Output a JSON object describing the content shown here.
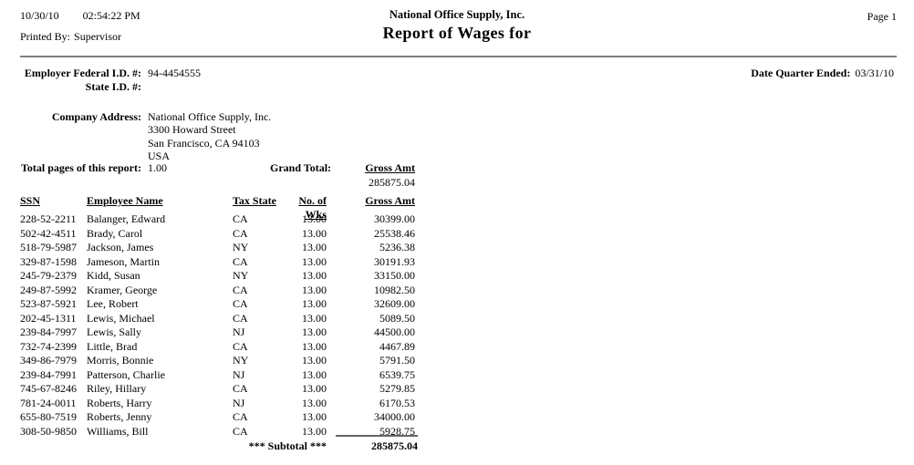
{
  "header": {
    "date": "10/30/10",
    "time": "02:54:22 PM",
    "printed_by_label": "Printed By:",
    "printed_by_value": "Supervisor",
    "company_name": "National Office Supply, Inc.",
    "report_title": "Report of Wages for",
    "page_number": "Page 1"
  },
  "employer": {
    "federal_id_label": "Employer Federal I.D. #:",
    "federal_id_value": "94-4454555",
    "state_id_label": "State I.D. #:",
    "quarter_ended_label": "Date Quarter Ended:",
    "quarter_ended_value": "03/31/10"
  },
  "company_address": {
    "label": "Company Address:",
    "line1": "National Office Supply, Inc.",
    "lines": [
      "3300 Howard Street",
      "San Francisco, CA 94103",
      "USA"
    ]
  },
  "summary": {
    "total_pages_label": "Total pages of this report:",
    "total_pages_value": "1.00",
    "grand_total_label": "Grand Total:",
    "gross_amt_label": "Gross Amt",
    "grand_total_value": "285875.04"
  },
  "table": {
    "headers": {
      "ssn": "SSN",
      "employee_name": "Employee Name",
      "tax_state": "Tax State",
      "no_of_wks": "No. of Wks",
      "gross_amt": "Gross Amt"
    },
    "rows": [
      {
        "ssn": "228-52-2211",
        "employee_name": "Balanger, Edward",
        "tax_state": "CA",
        "no_of_wks": "13.00",
        "gross_amt": "30399.00"
      },
      {
        "ssn": "502-42-4511",
        "employee_name": "Brady, Carol",
        "tax_state": "CA",
        "no_of_wks": "13.00",
        "gross_amt": "25538.46"
      },
      {
        "ssn": "518-79-5987",
        "employee_name": "Jackson, James",
        "tax_state": "NY",
        "no_of_wks": "13.00",
        "gross_amt": "5236.38"
      },
      {
        "ssn": "329-87-1598",
        "employee_name": "Jameson, Martin",
        "tax_state": "CA",
        "no_of_wks": "13.00",
        "gross_amt": "30191.93"
      },
      {
        "ssn": "245-79-2379",
        "employee_name": "Kidd, Susan",
        "tax_state": "NY",
        "no_of_wks": "13.00",
        "gross_amt": "33150.00"
      },
      {
        "ssn": "249-87-5992",
        "employee_name": "Kramer, George",
        "tax_state": "CA",
        "no_of_wks": "13.00",
        "gross_amt": "10982.50"
      },
      {
        "ssn": "523-87-5921",
        "employee_name": "Lee, Robert",
        "tax_state": "CA",
        "no_of_wks": "13.00",
        "gross_amt": "32609.00"
      },
      {
        "ssn": "202-45-1311",
        "employee_name": "Lewis, Michael",
        "tax_state": "CA",
        "no_of_wks": "13.00",
        "gross_amt": "5089.50"
      },
      {
        "ssn": "239-84-7997",
        "employee_name": "Lewis, Sally",
        "tax_state": "NJ",
        "no_of_wks": "13.00",
        "gross_amt": "44500.00"
      },
      {
        "ssn": "732-74-2399",
        "employee_name": "Little, Brad",
        "tax_state": "CA",
        "no_of_wks": "13.00",
        "gross_amt": "4467.89"
      },
      {
        "ssn": "349-86-7979",
        "employee_name": "Morris, Bonnie",
        "tax_state": "NY",
        "no_of_wks": "13.00",
        "gross_amt": "5791.50"
      },
      {
        "ssn": "239-84-7991",
        "employee_name": "Patterson, Charlie",
        "tax_state": "NJ",
        "no_of_wks": "13.00",
        "gross_amt": "6539.75"
      },
      {
        "ssn": "745-67-8246",
        "employee_name": "Riley, Hillary",
        "tax_state": "CA",
        "no_of_wks": "13.00",
        "gross_amt": "5279.85"
      },
      {
        "ssn": "781-24-0011",
        "employee_name": "Roberts, Harry",
        "tax_state": "NJ",
        "no_of_wks": "13.00",
        "gross_amt": "6170.53"
      },
      {
        "ssn": "655-80-7519",
        "employee_name": "Roberts, Jenny",
        "tax_state": "CA",
        "no_of_wks": "13.00",
        "gross_amt": "34000.00"
      },
      {
        "ssn": "308-50-9850",
        "employee_name": "Williams, Bill",
        "tax_state": "CA",
        "no_of_wks": "13.00",
        "gross_amt": "5928.75"
      }
    ],
    "subtotal_label": "*** Subtotal ***",
    "subtotal_value": "285875.04"
  }
}
